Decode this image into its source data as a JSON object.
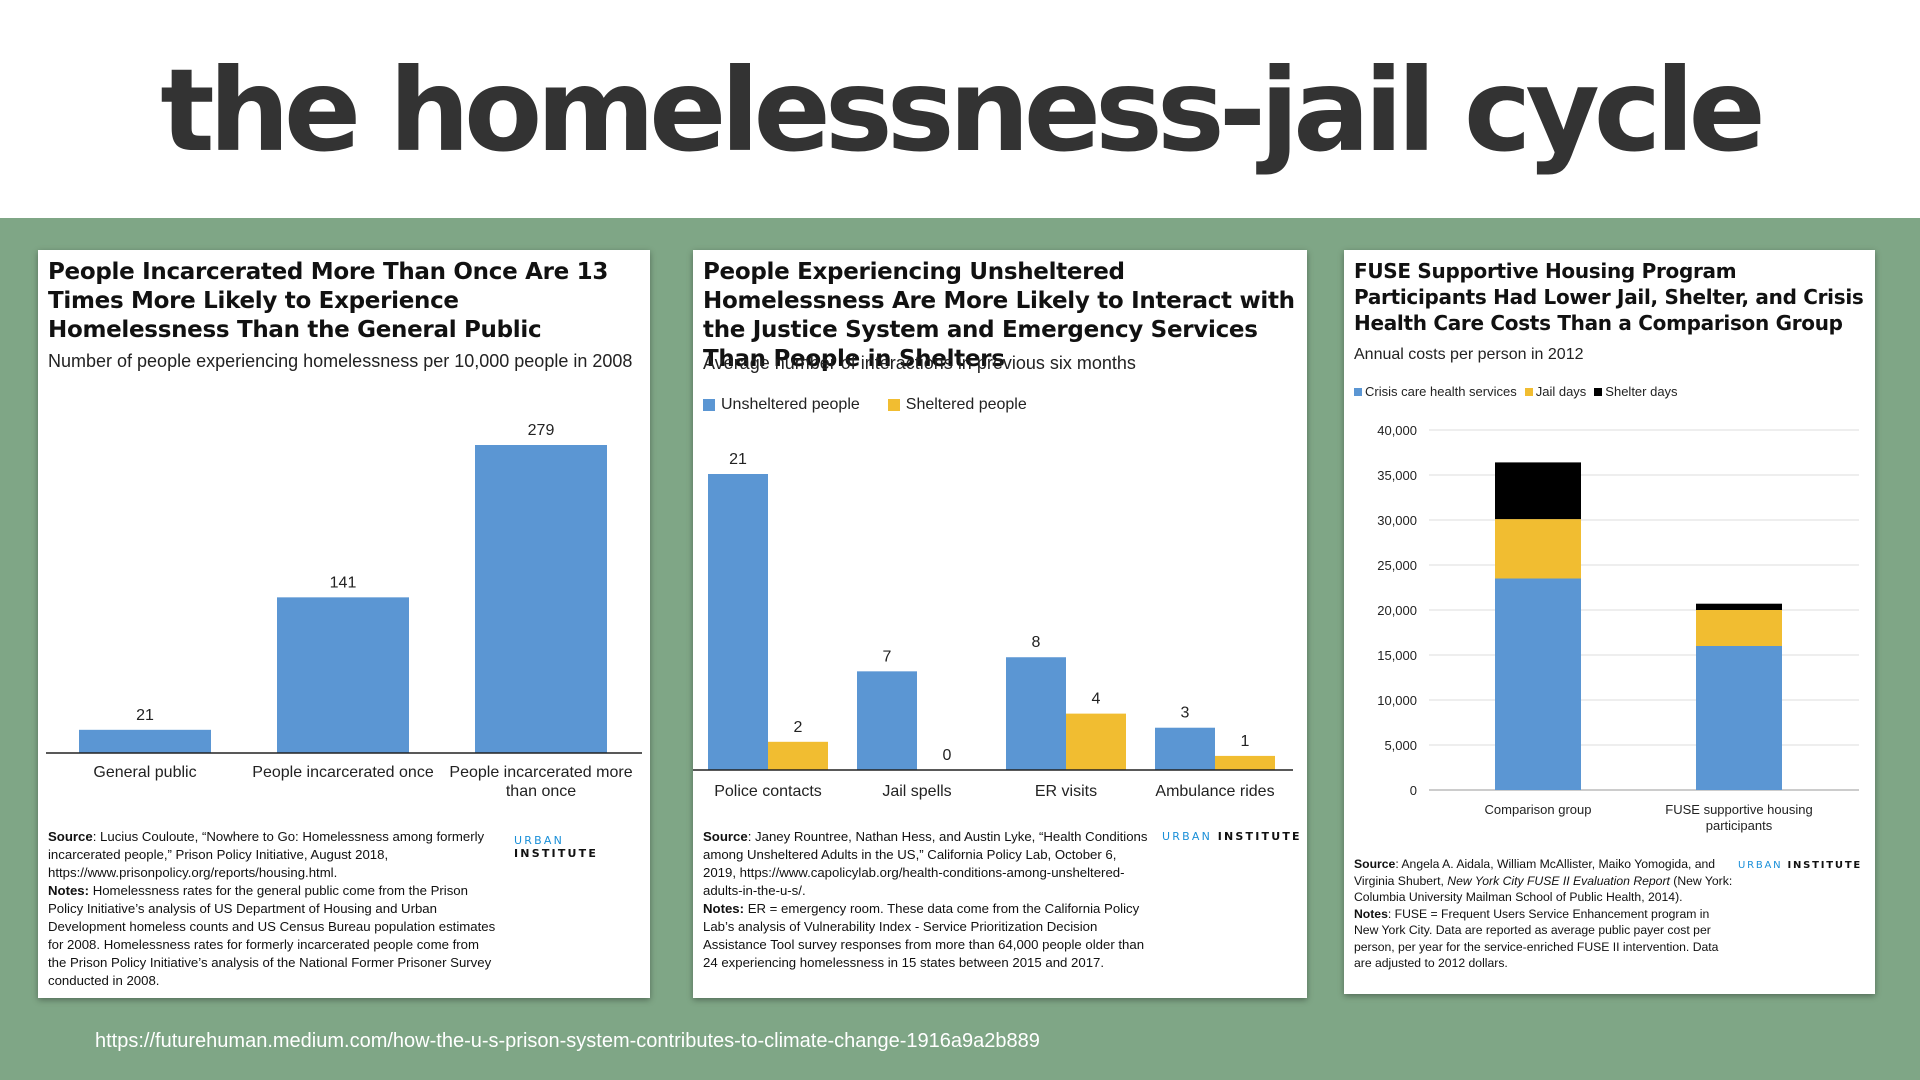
{
  "slide": {
    "title": "the homelessness-jail cycle",
    "source_url": "https://futurehuman.medium.com/how-the-u-s-prison-system-contributes-to-climate-change-1916a9a2b889"
  },
  "brand": {
    "urban": "URBAN",
    "institute": "INSTITUTE"
  },
  "colors": {
    "blue": "#5b96d3",
    "yellow": "#f1bd31",
    "black": "#000000",
    "green": "#7fa686"
  },
  "chart_data": [
    {
      "type": "bar",
      "title": "People Incarcerated More Than Once Are 13 Times More Likely to Experience Homelessness Than the General Public",
      "subtitle": "Number of people experiencing homelessness per 10,000 people in 2008",
      "categories": [
        "General public",
        "People incarcerated once",
        "People incarcerated more than once"
      ],
      "values": [
        21,
        141,
        279
      ],
      "value_labels": [
        "21",
        "141",
        "279"
      ],
      "ylim": [
        0,
        300
      ],
      "grid": false,
      "legend": "none",
      "notes": {
        "source_label": "Source",
        "source_text": ": Lucius Couloute, “Nowhere to Go: Homelessness among formerly incarcerated people,” Prison Policy Initiative, August 2018, https://www.prisonpolicy.org/reports/housing.html.",
        "notes_label": "Notes:",
        "notes_text": " Homelessness rates for the general public come from the Prison Policy Initiative’s analysis of US Department of Housing and Urban Development homeless counts and US Census Bureau population estimates for 2008. Homelessness rates for formerly incarcerated people come from the Prison Policy Initiative’s analysis of the National Former Prisoner Survey conducted in 2008."
      }
    },
    {
      "type": "bar",
      "title": "People Experiencing Unsheltered Homelessness Are More Likely to Interact with the Justice System and Emergency Services Than People in Shelters",
      "subtitle": "Average number of interactions in previous six months",
      "categories": [
        "Police contacts",
        "Jail spells",
        "ER visits",
        "Ambulance rides"
      ],
      "series": [
        {
          "name": "Unsheltered people",
          "values": [
            21,
            7,
            8,
            3
          ],
          "color": "#5b96d3"
        },
        {
          "name": "Sheltered people",
          "values": [
            2,
            0,
            4,
            1
          ],
          "color": "#f1bd31"
        }
      ],
      "ylim": [
        0,
        24
      ],
      "grid": false,
      "legend": "top-left",
      "notes": {
        "source_label": "Source",
        "source_text": ": Janey Rountree, Nathan Hess, and Austin Lyke, “Health Conditions among Unsheltered Adults in the US,” California Policy Lab, October 6, 2019, https://www.capolicylab.org/health-conditions-among-unsheltered-adults-in-the-u-s/.",
        "notes_label": "Notes:",
        "notes_text": " ER = emergency room. These data come from the California Policy Lab’s analysis of Vulnerability Index - Service Prioritization Decision Assistance Tool survey responses from more than 64,000 people older than 24 experiencing homelessness in 15 states between 2015 and 2017."
      }
    },
    {
      "type": "bar",
      "stacked": true,
      "title": "FUSE Supportive Housing Program Participants Had Lower Jail, Shelter, and Crisis Health Care Costs Than a Comparison Group",
      "subtitle": "Annual costs per person in 2012",
      "categories": [
        "Comparison group",
        "FUSE supportive housing participants"
      ],
      "series": [
        {
          "name": "Crisis care health services",
          "values": [
            23500,
            16000
          ],
          "color": "#5b96d3"
        },
        {
          "name": "Jail days",
          "values": [
            6600,
            4000
          ],
          "color": "#f1bd31"
        },
        {
          "name": "Shelter days",
          "values": [
            6300,
            700
          ],
          "color": "#000000"
        }
      ],
      "yticks": [
        "0",
        "5,000",
        "10,000",
        "15,000",
        "20,000",
        "25,000",
        "30,000",
        "35,000",
        "40,000"
      ],
      "ylim": [
        0,
        40000
      ],
      "grid": true,
      "legend": "top-left",
      "notes": {
        "source_label": "Source",
        "source_text_a": ": Angela A. Aidala, William McAllister, Maiko Yomogida, and Virginia Shubert, ",
        "source_italic": "New York City FUSE II Evaluation Report",
        "source_text_b": " (New York: Columbia University Mailman School of Public Health, 2014).",
        "notes_label": "Notes",
        "notes_text": ": FUSE = Frequent Users Service Enhancement program in New York City. Data are reported as average public payer cost per person, per year for the service-enriched FUSE II intervention. Data are adjusted to 2012 dollars."
      }
    }
  ]
}
